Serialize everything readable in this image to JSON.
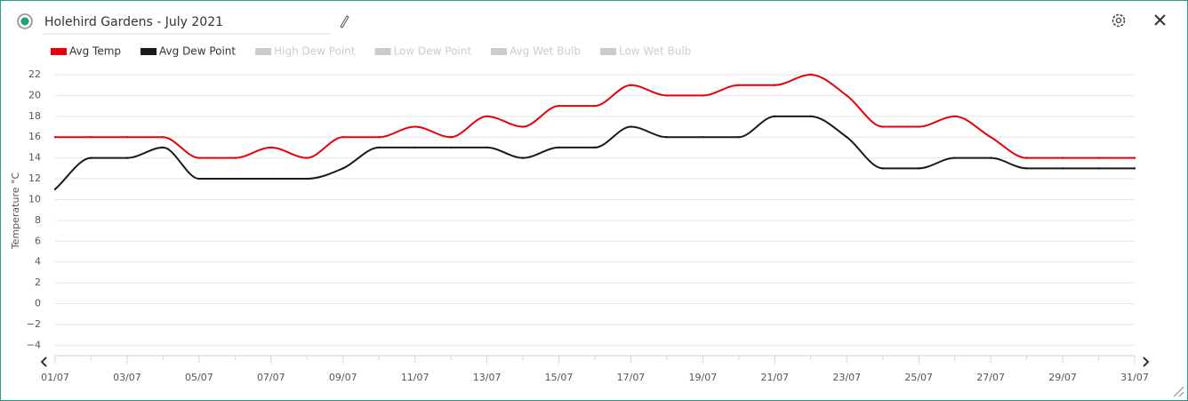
{
  "header": {
    "title": "Holehird Gardens - July 2021"
  },
  "chart_data": {
    "type": "line",
    "y_label": "Temperature °C",
    "categories": [
      "01/07",
      null,
      "03/07",
      null,
      "05/07",
      null,
      "07/07",
      null,
      "09/07",
      null,
      "11/07",
      null,
      "13/07",
      null,
      "15/07",
      null,
      "17/07",
      null,
      "19/07",
      null,
      "21/07",
      null,
      "23/07",
      null,
      "25/07",
      null,
      "27/07",
      null,
      "29/07",
      null,
      "31/07"
    ],
    "series": [
      {
        "name": "Avg Temp",
        "color": "#e8000b",
        "values": [
          16,
          16,
          16,
          16,
          14,
          14,
          15,
          14,
          16,
          16,
          17,
          16,
          18,
          17,
          19,
          19,
          21,
          20,
          20,
          21,
          21,
          22,
          20,
          17,
          17,
          18,
          16,
          14,
          14,
          14,
          14
        ]
      },
      {
        "name": "Avg Dew Point",
        "color": "#1a1a1a",
        "values": [
          11,
          14,
          14,
          15,
          12,
          12,
          12,
          12,
          13,
          15,
          15,
          15,
          15,
          14,
          15,
          15,
          17,
          16,
          16,
          16,
          18,
          18,
          16,
          13,
          13,
          14,
          14,
          13,
          13,
          13,
          13
        ]
      }
    ],
    "inactive_series": [
      "High Dew Point",
      "Low Dew Point",
      "Avg Wet Bulb",
      "Low Wet Bulb"
    ],
    "inactive_color": "#cccccc",
    "ylim": [
      -5,
      22
    ],
    "yticks": [
      {
        "value": -4,
        "label": "−4"
      },
      {
        "value": -2,
        "label": "−2"
      },
      0,
      2,
      4,
      6,
      8,
      10,
      12,
      14,
      16,
      18,
      20,
      22
    ],
    "grid": true
  }
}
